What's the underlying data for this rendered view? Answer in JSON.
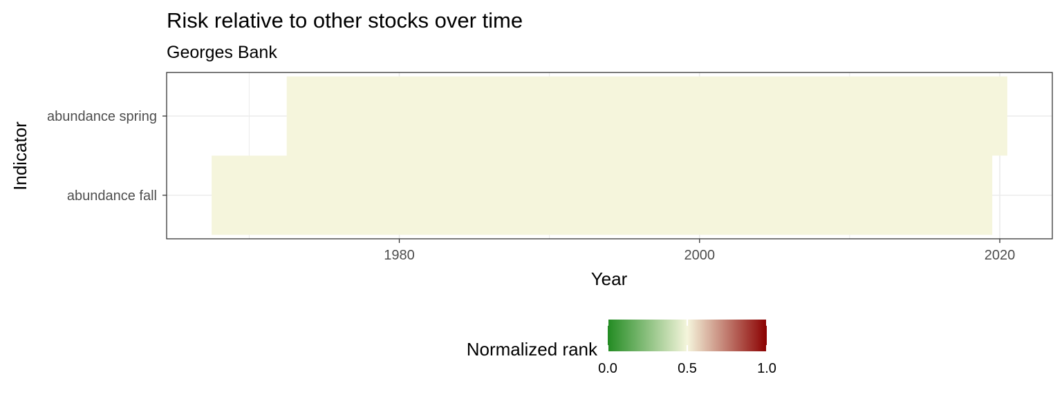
{
  "chart_data": {
    "type": "heatmap",
    "title": "Risk relative to other stocks over time",
    "subtitle": "Georges Bank",
    "xlabel": "Year",
    "ylabel": "Indicator",
    "xlim": [
      1964.5,
      2023.5
    ],
    "x_ticks": [
      1980,
      2000,
      2020
    ],
    "x_minor_ticks": [
      1970,
      1990,
      2010
    ],
    "categories": [
      "abundance fall",
      "abundance spring"
    ],
    "grid": true,
    "legend_position": "bottom",
    "legend": {
      "title": "Normalized rank",
      "ticks": [
        "0.0",
        "0.5",
        "1.0"
      ],
      "tick_values": [
        0,
        0.5,
        1
      ],
      "colors": {
        "low": "#228b22",
        "mid": "#f5f5dc",
        "high": "#8b0000"
      }
    },
    "series": [
      {
        "indicator": "abundance fall",
        "start_year": 1968,
        "end_year": 2019,
        "value": 0.5
      },
      {
        "indicator": "abundance spring",
        "start_year": 1973,
        "end_year": 2020,
        "value": 0.5
      }
    ],
    "tile_color": "#f5f5dc"
  }
}
